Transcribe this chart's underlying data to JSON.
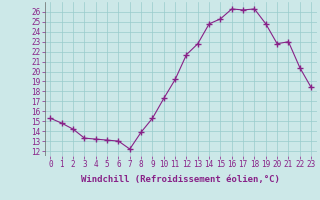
{
  "x": [
    0,
    1,
    2,
    3,
    4,
    5,
    6,
    7,
    8,
    9,
    10,
    11,
    12,
    13,
    14,
    15,
    16,
    17,
    18,
    19,
    20,
    21,
    22,
    23
  ],
  "y": [
    15.3,
    14.8,
    14.2,
    13.3,
    13.2,
    13.1,
    13.0,
    12.2,
    13.9,
    15.3,
    17.3,
    19.2,
    21.7,
    22.8,
    24.8,
    25.3,
    26.3,
    26.2,
    26.3,
    24.8,
    22.8,
    23.0,
    20.4,
    18.4
  ],
  "line_color": "#882288",
  "marker": "+",
  "marker_size": 4,
  "bg_color": "#cce8e8",
  "grid_color": "#99cccc",
  "xlabel": "Windchill (Refroidissement éolien,°C)",
  "xlabel_fontsize": 6.5,
  "ylabel_ticks": [
    12,
    13,
    14,
    15,
    16,
    17,
    18,
    19,
    20,
    21,
    22,
    23,
    24,
    25,
    26
  ],
  "xlim": [
    -0.5,
    23.5
  ],
  "ylim": [
    11.5,
    27.0
  ],
  "tick_fontsize": 5.5
}
